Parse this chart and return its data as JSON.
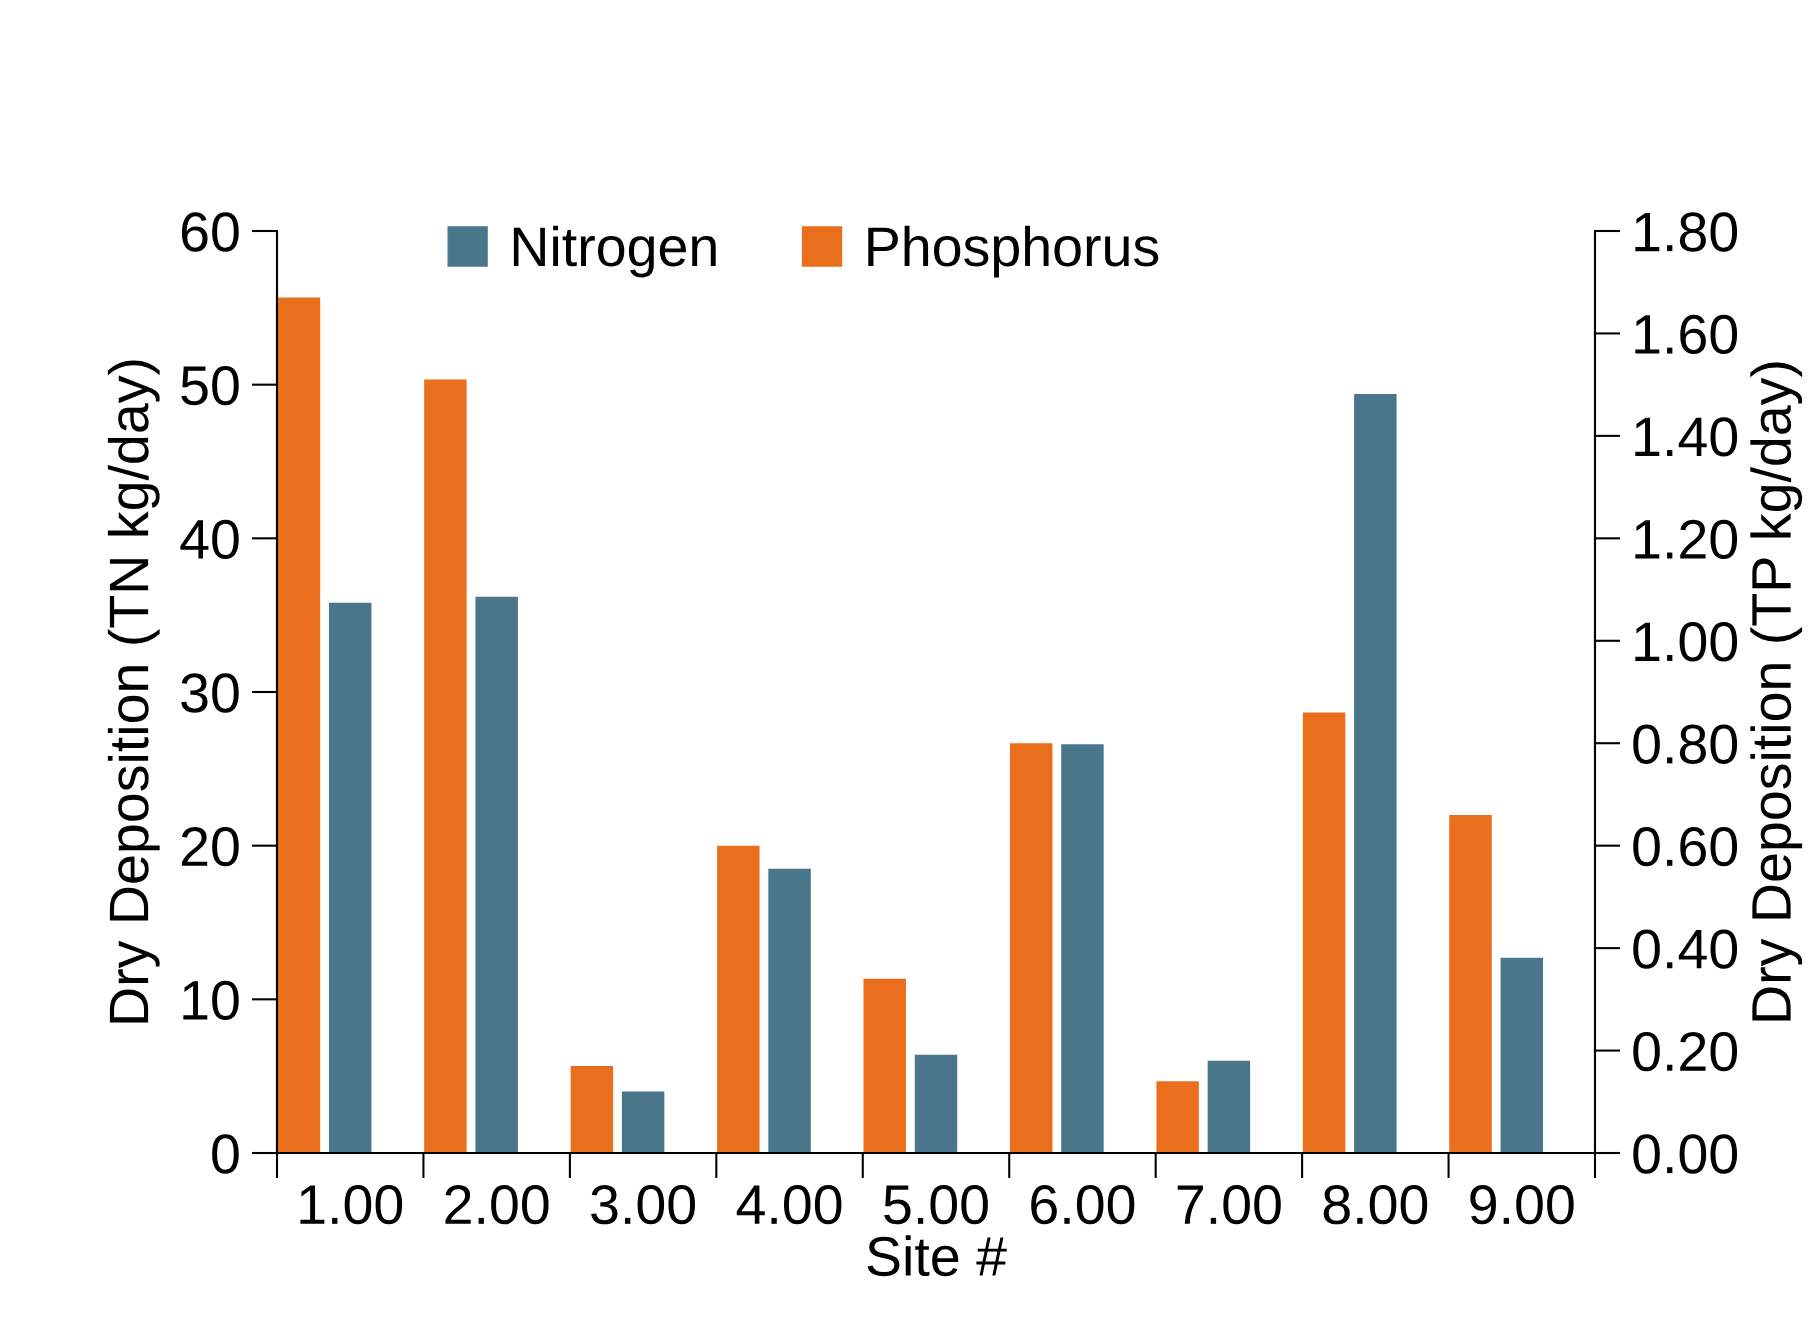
{
  "chart_data": {
    "type": "bar",
    "xlabel": "Site #",
    "ylabel": "Dry Deposition (TN kg/day)",
    "y2label": "Dry Deposition (TP kg/day)",
    "categories": [
      "1.00",
      "2.00",
      "3.00",
      "4.00",
      "5.00",
      "6.00",
      "7.00",
      "8.00",
      "9.00"
    ],
    "series": [
      {
        "name": "Nitrogen",
        "color": "#4a768c",
        "axis": "y",
        "values": [
          35.8,
          36.2,
          4.0,
          18.5,
          6.4,
          26.6,
          6.0,
          49.4,
          12.7
        ]
      },
      {
        "name": "Phosphorus",
        "color": "#e96f1c",
        "axis": "y2",
        "values": [
          1.67,
          1.51,
          0.17,
          0.6,
          0.34,
          0.8,
          0.14,
          0.86,
          0.66
        ]
      }
    ],
    "ylim": [
      0,
      60
    ],
    "yticks": [
      0,
      10,
      20,
      30,
      40,
      50,
      60
    ],
    "y2lim": [
      0,
      1.8
    ],
    "y2ticks": [
      {
        "value": 0,
        "label": "0.00"
      },
      {
        "value": 0.2,
        "label": "0.20"
      },
      {
        "value": 0.4,
        "label": "0.40"
      },
      {
        "value": 0.6,
        "label": "0.60"
      },
      {
        "value": 0.8,
        "label": "0.80"
      },
      {
        "value": 1.0,
        "label": "1.00"
      },
      {
        "value": 1.2,
        "label": "1.20"
      },
      {
        "value": 1.4,
        "label": "1.40"
      },
      {
        "value": 1.6,
        "label": "1.60"
      },
      {
        "value": 1.8,
        "label": "1.80"
      }
    ],
    "grid": false,
    "legend": "top"
  }
}
